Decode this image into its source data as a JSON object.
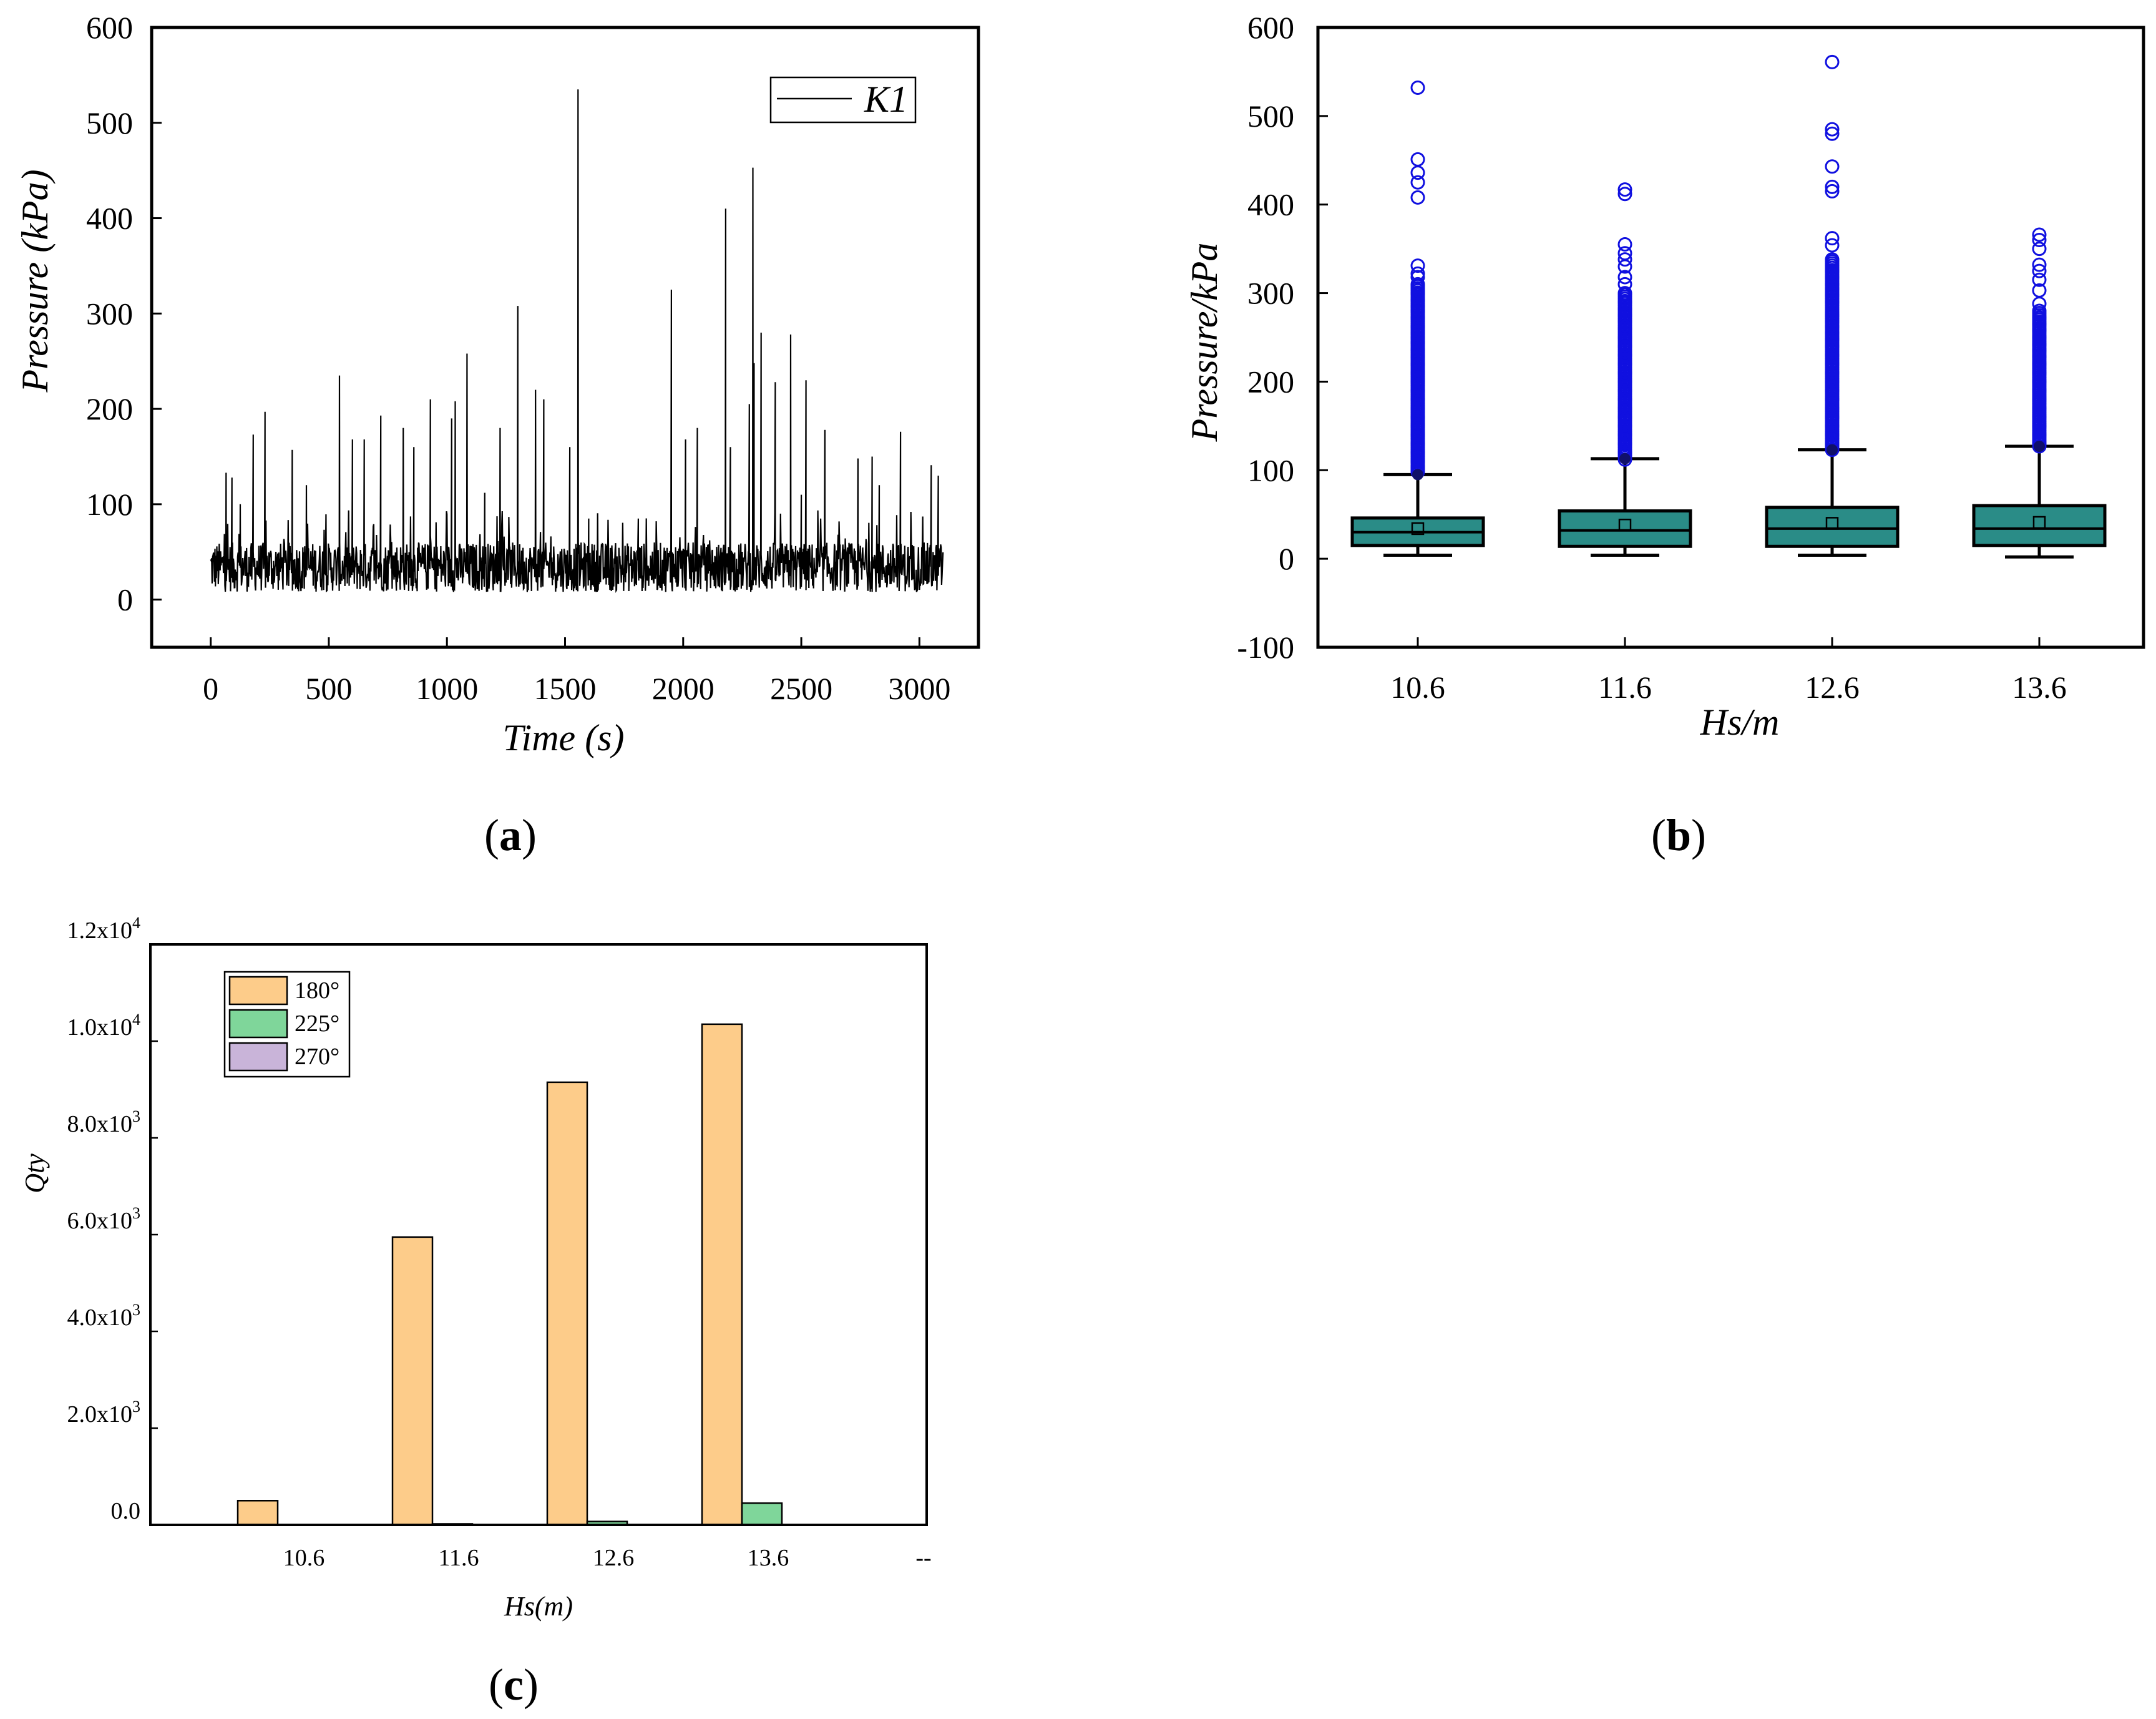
{
  "chart_data": [
    {
      "type": "line",
      "panel": "a",
      "xlabel": "Time (s)",
      "ylabel": "Pressure (kPa)",
      "xlim": [
        -250,
        3250
      ],
      "ylim": [
        -50,
        600
      ],
      "xticks": [
        0,
        500,
        1000,
        1500,
        2000,
        2500,
        3000
      ],
      "yticks": [
        0,
        100,
        200,
        300,
        400,
        500,
        600
      ],
      "legend": [
        "K1"
      ],
      "legend_position": "top-right",
      "series": [
        {
          "name": "K1",
          "color": "#000000",
          "baseline_range": [
            8,
            60
          ],
          "duration_s": 3100,
          "peaks": [
            {
              "t": 65,
              "p": 133
            },
            {
              "t": 90,
              "p": 128
            },
            {
              "t": 125,
              "p": 100
            },
            {
              "t": 180,
              "p": 173
            },
            {
              "t": 230,
              "p": 197
            },
            {
              "t": 345,
              "p": 157
            },
            {
              "t": 405,
              "p": 120
            },
            {
              "t": 545,
              "p": 235
            },
            {
              "t": 600,
              "p": 168
            },
            {
              "t": 650,
              "p": 168
            },
            {
              "t": 720,
              "p": 193
            },
            {
              "t": 815,
              "p": 180
            },
            {
              "t": 860,
              "p": 160
            },
            {
              "t": 930,
              "p": 210
            },
            {
              "t": 1020,
              "p": 190
            },
            {
              "t": 1035,
              "p": 208
            },
            {
              "t": 1085,
              "p": 258
            },
            {
              "t": 1160,
              "p": 112
            },
            {
              "t": 1225,
              "p": 180
            },
            {
              "t": 1300,
              "p": 308
            },
            {
              "t": 1375,
              "p": 220
            },
            {
              "t": 1410,
              "p": 210
            },
            {
              "t": 1520,
              "p": 160
            },
            {
              "t": 1555,
              "p": 535
            },
            {
              "t": 1600,
              "p": 85
            },
            {
              "t": 1810,
              "p": 85
            },
            {
              "t": 1950,
              "p": 325
            },
            {
              "t": 2010,
              "p": 168
            },
            {
              "t": 2060,
              "p": 180
            },
            {
              "t": 2180,
              "p": 410
            },
            {
              "t": 2200,
              "p": 160
            },
            {
              "t": 2280,
              "p": 205
            },
            {
              "t": 2295,
              "p": 453
            },
            {
              "t": 2300,
              "p": 248
            },
            {
              "t": 2330,
              "p": 280
            },
            {
              "t": 2390,
              "p": 228
            },
            {
              "t": 2455,
              "p": 278
            },
            {
              "t": 2500,
              "p": 110
            },
            {
              "t": 2520,
              "p": 230
            },
            {
              "t": 2600,
              "p": 178
            },
            {
              "t": 2740,
              "p": 148
            },
            {
              "t": 2800,
              "p": 150
            },
            {
              "t": 2830,
              "p": 120
            },
            {
              "t": 2920,
              "p": 176
            },
            {
              "t": 3050,
              "p": 141
            },
            {
              "t": 3080,
              "p": 130
            }
          ]
        }
      ],
      "panel_label": "(a)"
    },
    {
      "type": "box",
      "panel": "b",
      "xlabel": "Hs/m",
      "ylabel": "Pressure/kPa",
      "ylim": [
        -100,
        600
      ],
      "yticks": [
        -100,
        0,
        100,
        200,
        300,
        400,
        500,
        600
      ],
      "categories": [
        "10.6",
        "11.6",
        "12.6",
        "13.6"
      ],
      "box_color": "#2a8c87",
      "outlier_color": "#1010e0",
      "boxes": [
        {
          "label": "10.6",
          "whisker_low": 4,
          "q1": 15,
          "median": 30,
          "mean": 34,
          "q3": 46,
          "whisker_high": 95,
          "outliers": [
            532,
            451,
            436,
            425,
            408,
            331,
            322,
            318,
            310,
            300,
            292,
            285,
            280,
            272,
            262,
            255,
            250,
            244,
            236,
            228,
            220,
            210,
            200,
            190,
            180,
            170,
            160,
            150,
            140,
            130,
            120,
            110,
            103
          ]
        },
        {
          "label": "11.6",
          "whisker_low": 4,
          "q1": 14,
          "median": 32,
          "mean": 38,
          "q3": 54,
          "whisker_high": 113,
          "outliers": [
            417,
            412,
            355,
            345,
            338,
            330,
            318,
            310,
            300,
            290,
            282,
            275,
            268,
            260,
            250,
            240,
            230,
            220,
            210,
            200,
            190,
            180,
            170,
            160,
            150,
            140,
            130,
            120,
            112
          ]
        },
        {
          "label": "12.6",
          "whisker_low": 4,
          "q1": 14,
          "median": 34,
          "mean": 40,
          "q3": 58,
          "whisker_high": 123,
          "outliers": [
            561,
            485,
            480,
            443,
            420,
            415,
            362,
            354,
            338,
            325,
            318,
            310,
            305,
            298,
            290,
            275,
            268,
            262,
            255,
            248,
            240,
            230,
            220,
            210,
            200,
            190,
            180,
            170,
            160,
            150,
            140,
            130,
            123
          ]
        },
        {
          "label": "13.6",
          "whisker_low": 2,
          "q1": 15,
          "median": 34,
          "mean": 41,
          "q3": 60,
          "whisker_high": 127,
          "outliers": [
            366,
            360,
            350,
            332,
            325,
            315,
            303,
            288,
            280,
            272,
            265,
            258,
            250,
            242,
            235,
            228,
            220,
            210,
            200,
            190,
            180,
            170,
            160,
            150,
            140,
            130,
            127
          ]
        }
      ],
      "panel_label": "(b)"
    },
    {
      "type": "bar",
      "panel": "c",
      "xlabel": "Hs(m)",
      "ylabel": "Qty",
      "ylim": [
        0,
        12000
      ],
      "ytick_values": [
        0,
        2000,
        4000,
        6000,
        8000,
        10000,
        12000
      ],
      "ytick_labels": [
        {
          "mantissa": "0.0",
          "exp": ""
        },
        {
          "mantissa": "2.0x10",
          "exp": "3"
        },
        {
          "mantissa": "4.0x10",
          "exp": "3"
        },
        {
          "mantissa": "6.0x10",
          "exp": "3"
        },
        {
          "mantissa": "8.0x10",
          "exp": "3"
        },
        {
          "mantissa": "1.0x10",
          "exp": "4"
        },
        {
          "mantissa": "1.2x10",
          "exp": "4"
        }
      ],
      "categories": [
        "10.6",
        "11.6",
        "12.6",
        "13.6",
        "--"
      ],
      "series": [
        {
          "name": "180°",
          "color": "#fdcc8a",
          "values": [
            500,
            5950,
            9150,
            10350,
            0
          ]
        },
        {
          "name": "225°",
          "color": "#7fd69a",
          "values": [
            0,
            20,
            70,
            450,
            0
          ]
        },
        {
          "name": "270°",
          "color": "#c9b4d9",
          "values": [
            0,
            0,
            0,
            0,
            0
          ]
        }
      ],
      "legend_position": "top-left",
      "panel_label": "(c)"
    }
  ]
}
